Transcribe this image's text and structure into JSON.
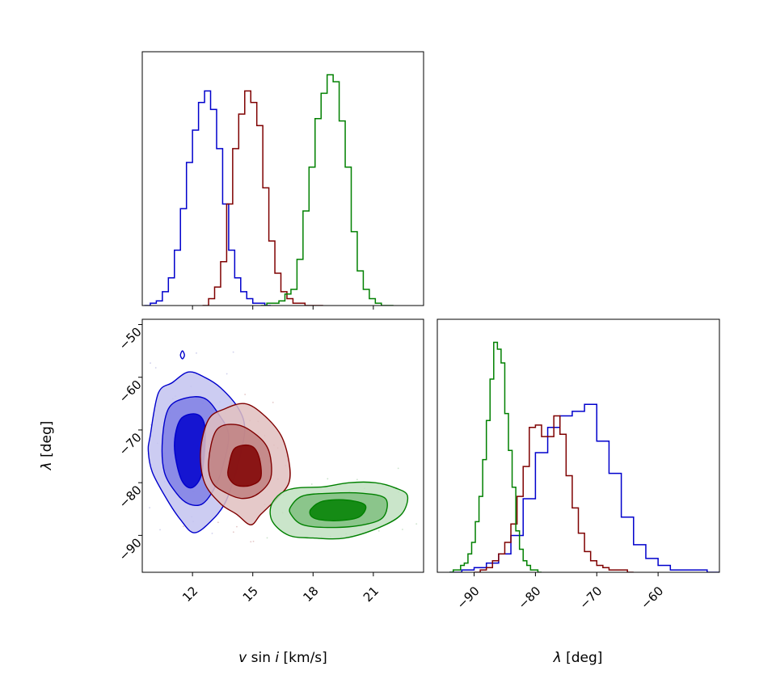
{
  "colors": {
    "blue": "#0000cc",
    "blue_fill": [
      "#c3c3f0",
      "#7f7fe5",
      "#0000cc"
    ],
    "red": "#7f0000",
    "red_fill": [
      "#e0c0c0",
      "#c08080",
      "#7f0000"
    ],
    "green": "#008000",
    "green_fill": [
      "#c1e1c1",
      "#80bf80",
      "#008000"
    ]
  },
  "chart_data": [
    {
      "panel": "vsini-histogram",
      "type": "histogram",
      "xlim": [
        9.5,
        23.5
      ],
      "xticks": [
        12,
        15,
        18,
        21
      ],
      "ylim": [
        0,
        1.1
      ],
      "show_x_ticklabels": false,
      "series": [
        {
          "name": "blue",
          "color_key": "blue",
          "bin_start": 9.6,
          "bin_width": 0.3,
          "values": [
            0.0,
            0.01,
            0.02,
            0.06,
            0.12,
            0.24,
            0.42,
            0.62,
            0.76,
            0.88,
            0.93,
            0.85,
            0.68,
            0.44,
            0.24,
            0.12,
            0.06,
            0.03,
            0.01,
            0.01,
            0
          ]
        },
        {
          "name": "red",
          "color_key": "red",
          "bin_start": 12.5,
          "bin_width": 0.3,
          "values": [
            0.0,
            0.03,
            0.08,
            0.19,
            0.44,
            0.68,
            0.83,
            0.93,
            0.88,
            0.78,
            0.51,
            0.28,
            0.14,
            0.06,
            0.03,
            0.01,
            0.01,
            0.0,
            0.0,
            0
          ]
        },
        {
          "name": "green",
          "color_key": "green",
          "bin_start": 15.4,
          "bin_width": 0.3,
          "values": [
            0.0,
            0.01,
            0.01,
            0.02,
            0.05,
            0.07,
            0.2,
            0.41,
            0.6,
            0.81,
            0.92,
            1.0,
            0.97,
            0.8,
            0.6,
            0.32,
            0.15,
            0.07,
            0.03,
            0.01,
            0.0,
            0
          ]
        }
      ]
    },
    {
      "panel": "joint-contours",
      "type": "contour",
      "xlim": [
        9.5,
        23.5
      ],
      "ylim": [
        -97,
        -49
      ],
      "xticks": [
        12,
        15,
        18,
        21
      ],
      "yticks": [
        -50,
        -60,
        -70,
        -80,
        -90
      ],
      "xlabel": "v sin i [km/s]",
      "ylabel": "λ [deg]",
      "series": [
        {
          "name": "blue",
          "color_key": "blue",
          "contours": [
            {
              "level": "outer",
              "points": [
                [
                  9.9,
                  -71
                ],
                [
                  10.3,
                  -63
                ],
                [
                  11.0,
                  -61
                ],
                [
                  11.8,
                  -59
                ],
                [
                  12.6,
                  -60
                ],
                [
                  13.4,
                  -62
                ],
                [
                  14.3,
                  -66
                ],
                [
                  14.6,
                  -70
                ],
                [
                  14.3,
                  -76
                ],
                [
                  14.0,
                  -80
                ],
                [
                  13.6,
                  -84
                ],
                [
                  13.0,
                  -87
                ],
                [
                  12.1,
                  -89.5
                ],
                [
                  11.4,
                  -87
                ],
                [
                  10.7,
                  -83
                ],
                [
                  10.0,
                  -78
                ],
                [
                  9.8,
                  -74
                ]
              ]
            },
            {
              "level": "middle",
              "points": [
                [
                  10.5,
                  -72
                ],
                [
                  10.8,
                  -66
                ],
                [
                  11.6,
                  -64
                ],
                [
                  12.6,
                  -64
                ],
                [
                  13.3,
                  -67
                ],
                [
                  13.8,
                  -71
                ],
                [
                  13.5,
                  -77
                ],
                [
                  13.1,
                  -81
                ],
                [
                  12.5,
                  -84
                ],
                [
                  11.8,
                  -84
                ],
                [
                  11.2,
                  -82
                ],
                [
                  10.6,
                  -78
                ]
              ]
            },
            {
              "level": "inner",
              "points": [
                [
                  11.1,
                  -73
                ],
                [
                  11.4,
                  -68
                ],
                [
                  12.2,
                  -67
                ],
                [
                  12.6,
                  -69
                ],
                [
                  12.6,
                  -74
                ],
                [
                  12.4,
                  -79
                ],
                [
                  11.9,
                  -81
                ],
                [
                  11.4,
                  -79
                ]
              ]
            }
          ],
          "islands": [
            [
              [
                11.5,
                -55
              ],
              [
                11.6,
                -55.8
              ],
              [
                11.5,
                -56.5
              ],
              [
                11.4,
                -55.8
              ]
            ]
          ]
        },
        {
          "name": "red",
          "color_key": "red",
          "contours": [
            {
              "level": "outer",
              "points": [
                [
                  12.4,
                  -74
                ],
                [
                  12.8,
                  -68
                ],
                [
                  13.6,
                  -66
                ],
                [
                  14.6,
                  -65
                ],
                [
                  15.5,
                  -67
                ],
                [
                  16.4,
                  -71
                ],
                [
                  16.8,
                  -76
                ],
                [
                  16.8,
                  -80
                ],
                [
                  16.2,
                  -83
                ],
                [
                  15.4,
                  -86
                ],
                [
                  14.9,
                  -88
                ],
                [
                  14.2,
                  -86
                ],
                [
                  13.4,
                  -84
                ],
                [
                  12.6,
                  -80
                ]
              ]
            },
            {
              "level": "middle",
              "points": [
                [
                  12.8,
                  -76
                ],
                [
                  13.2,
                  -70
                ],
                [
                  14.2,
                  -69
                ],
                [
                  15.2,
                  -71
                ],
                [
                  15.8,
                  -74
                ],
                [
                  15.9,
                  -79
                ],
                [
                  15.3,
                  -82
                ],
                [
                  14.5,
                  -83
                ],
                [
                  13.7,
                  -82
                ],
                [
                  13.0,
                  -80
                ]
              ]
            },
            {
              "level": "inner",
              "points": [
                [
                  13.8,
                  -77
                ],
                [
                  14.1,
                  -73.5
                ],
                [
                  14.9,
                  -73
                ],
                [
                  15.3,
                  -75
                ],
                [
                  15.4,
                  -79
                ],
                [
                  14.9,
                  -80.5
                ],
                [
                  14.2,
                  -80.5
                ],
                [
                  13.8,
                  -79
                ]
              ]
            }
          ]
        },
        {
          "name": "green",
          "color_key": "green",
          "contours": [
            {
              "level": "outer",
              "points": [
                [
                  15.9,
                  -84.5
                ],
                [
                  16.4,
                  -82
                ],
                [
                  17.2,
                  -81
                ],
                [
                  18.5,
                  -80.8
                ],
                [
                  19.8,
                  -80
                ],
                [
                  21.1,
                  -80
                ],
                [
                  22.1,
                  -81
                ],
                [
                  22.7,
                  -82.5
                ],
                [
                  22.4,
                  -86
                ],
                [
                  21.3,
                  -88.5
                ],
                [
                  19.6,
                  -90.5
                ],
                [
                  18.0,
                  -90.5
                ],
                [
                  16.8,
                  -90
                ],
                [
                  16.0,
                  -87.5
                ]
              ]
            },
            {
              "level": "middle",
              "points": [
                [
                  16.9,
                  -84.5
                ],
                [
                  17.5,
                  -82.5
                ],
                [
                  18.9,
                  -82
                ],
                [
                  20.4,
                  -82
                ],
                [
                  21.6,
                  -83
                ],
                [
                  21.5,
                  -86.5
                ],
                [
                  20.5,
                  -88
                ],
                [
                  18.9,
                  -88.5
                ],
                [
                  17.5,
                  -88
                ],
                [
                  16.9,
                  -86
                ]
              ]
            },
            {
              "level": "inner",
              "points": [
                [
                  17.9,
                  -85
                ],
                [
                  18.5,
                  -83.5
                ],
                [
                  19.7,
                  -83.3
                ],
                [
                  20.6,
                  -84.3
                ],
                [
                  20.3,
                  -86.5
                ],
                [
                  19.3,
                  -87.2
                ],
                [
                  18.3,
                  -87
                ],
                [
                  17.9,
                  -86.3
                ]
              ]
            }
          ]
        }
      ]
    },
    {
      "panel": "lambda-histogram",
      "type": "histogram",
      "xlim": [
        -96,
        -50
      ],
      "xticks": [
        -90,
        -80,
        -70,
        -60
      ],
      "ylim": [
        0,
        1.1
      ],
      "xlabel": "λ [deg]",
      "series": [
        {
          "name": "blue",
          "color_key": "blue",
          "bin_start": -94,
          "bin_width": 2,
          "values": [
            0.0,
            0.01,
            0.02,
            0.04,
            0.08,
            0.16,
            0.32,
            0.52,
            0.63,
            0.68,
            0.7,
            0.73,
            0.57,
            0.43,
            0.24,
            0.12,
            0.06,
            0.03,
            0.01,
            0.01,
            0.01,
            0
          ]
        },
        {
          "name": "red",
          "color_key": "red",
          "bin_start": -90,
          "bin_width": 1,
          "values": [
            0.0,
            0.01,
            0.02,
            0.05,
            0.08,
            0.13,
            0.21,
            0.33,
            0.46,
            0.63,
            0.64,
            0.59,
            0.59,
            0.68,
            0.6,
            0.42,
            0.28,
            0.17,
            0.09,
            0.05,
            0.03,
            0.02,
            0.01,
            0.01,
            0.01,
            0
          ]
        },
        {
          "name": "green",
          "color_key": "green",
          "bin_start": -94,
          "bin_width": 0.6,
          "values": [
            0.0,
            0.01,
            0.01,
            0.03,
            0.04,
            0.08,
            0.13,
            0.22,
            0.33,
            0.49,
            0.66,
            0.84,
            1.0,
            0.97,
            0.91,
            0.69,
            0.53,
            0.37,
            0.18,
            0.1,
            0.05,
            0.03,
            0.01,
            0.01,
            0
          ]
        }
      ]
    }
  ]
}
